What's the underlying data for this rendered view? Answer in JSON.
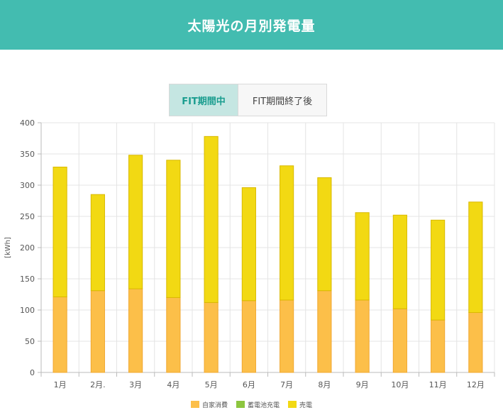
{
  "header": {
    "title": "太陽光の月別発電量"
  },
  "colors": {
    "header_bg": "#43bcb0",
    "tab_active_bg": "#c5e6e2",
    "tab_active_text": "#1a9d8f",
    "tab_inactive_bg": "#f7f7f7"
  },
  "tabs": [
    {
      "label": "FIT期間中",
      "active": true
    },
    {
      "label": "FIT期間終了後",
      "active": false
    }
  ],
  "chart_data": {
    "type": "bar",
    "stacked": true,
    "categories": [
      "1月",
      "2月.",
      "3月",
      "4月",
      "5月",
      "6月",
      "7月",
      "8月",
      "9月",
      "10月",
      "11月",
      "12月"
    ],
    "ylabel": "[kWh]",
    "ylim": [
      0,
      400
    ],
    "yticks": [
      0,
      50,
      100,
      150,
      200,
      250,
      300,
      350,
      400
    ],
    "grid": true,
    "legend_position": "bottom",
    "series": [
      {
        "name": "自家消費",
        "color": "#fcbf49",
        "border": "#f0a830",
        "values": [
          121,
          131,
          134,
          120,
          112,
          115,
          116,
          131,
          116,
          102,
          84,
          96
        ]
      },
      {
        "name": "蓄電池充電",
        "color": "#8dc63f",
        "border": "#7ab030",
        "values": [
          0,
          0,
          0,
          0,
          0,
          0,
          0,
          0,
          0,
          0,
          0,
          0
        ]
      },
      {
        "name": "売電",
        "color": "#f2d913",
        "border": "#d9b900",
        "values": [
          208,
          154,
          214,
          220,
          266,
          181,
          215,
          181,
          140,
          150,
          160,
          177
        ]
      }
    ]
  }
}
